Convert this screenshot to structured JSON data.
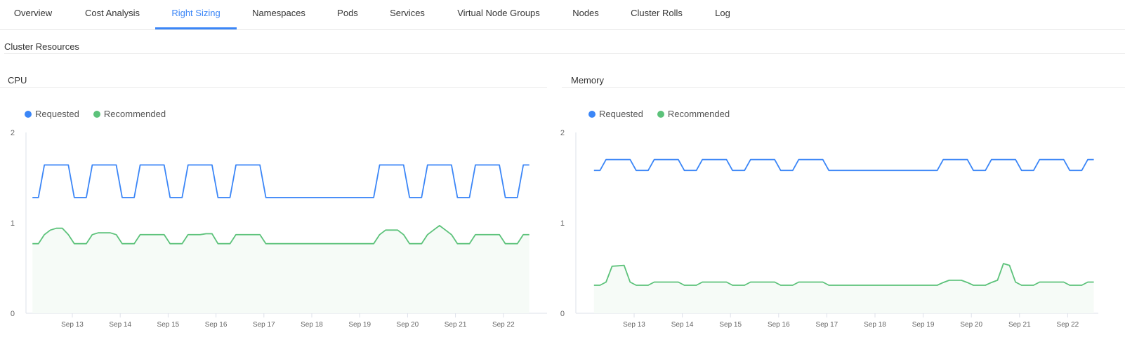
{
  "tabs": [
    {
      "label": "Overview",
      "active": false
    },
    {
      "label": "Cost Analysis",
      "active": false
    },
    {
      "label": "Right Sizing",
      "active": true
    },
    {
      "label": "Namespaces",
      "active": false
    },
    {
      "label": "Pods",
      "active": false
    },
    {
      "label": "Services",
      "active": false
    },
    {
      "label": "Virtual Node Groups",
      "active": false
    },
    {
      "label": "Nodes",
      "active": false
    },
    {
      "label": "Cluster Rolls",
      "active": false
    },
    {
      "label": "Log",
      "active": false
    }
  ],
  "section_title": "Cluster Resources",
  "colors": {
    "accent": "#3b86f7",
    "requested": "#3b86f7",
    "recommended": "#5cc27a",
    "recommended_fill": "#f6fbf7"
  },
  "chart_data": [
    {
      "title": "CPU",
      "type": "area",
      "legend": [
        "Requested",
        "Recommended"
      ],
      "legend_position": "top-left",
      "ylim": [
        0,
        2
      ],
      "yticks": [
        "0",
        "1",
        "2"
      ],
      "xticks": [
        "Sep 13",
        "Sep 14",
        "Sep 15",
        "Sep 16",
        "Sep 17",
        "Sep 18",
        "Sep 19",
        "Sep 20",
        "Sep 21",
        "Sep 22"
      ],
      "x_start": "Sep 12 04:00",
      "x_interval_hours": 3,
      "series": [
        {
          "name": "Requested",
          "color": "#3b86f7",
          "fill": false,
          "values": [
            1.28,
            1.28,
            1.64,
            1.64,
            1.64,
            1.64,
            1.64,
            1.28,
            1.28,
            1.28,
            1.64,
            1.64,
            1.64,
            1.64,
            1.64,
            1.28,
            1.28,
            1.28,
            1.64,
            1.64,
            1.64,
            1.64,
            1.64,
            1.28,
            1.28,
            1.28,
            1.64,
            1.64,
            1.64,
            1.64,
            1.64,
            1.28,
            1.28,
            1.28,
            1.64,
            1.64,
            1.64,
            1.64,
            1.64,
            1.28,
            1.28,
            1.28,
            1.28,
            1.28,
            1.28,
            1.28,
            1.28,
            1.28,
            1.28,
            1.28,
            1.28,
            1.28,
            1.28,
            1.28,
            1.28,
            1.28,
            1.28,
            1.28,
            1.64,
            1.64,
            1.64,
            1.64,
            1.64,
            1.28,
            1.28,
            1.28,
            1.64,
            1.64,
            1.64,
            1.64,
            1.64,
            1.28,
            1.28,
            1.28,
            1.64,
            1.64,
            1.64,
            1.64,
            1.64,
            1.28,
            1.28,
            1.28,
            1.64,
            1.64
          ]
        },
        {
          "name": "Recommended",
          "color": "#5cc27a",
          "fill": true,
          "values": [
            0.77,
            0.77,
            0.87,
            0.92,
            0.94,
            0.94,
            0.87,
            0.77,
            0.77,
            0.77,
            0.87,
            0.89,
            0.89,
            0.89,
            0.87,
            0.77,
            0.77,
            0.77,
            0.87,
            0.87,
            0.87,
            0.87,
            0.87,
            0.77,
            0.77,
            0.77,
            0.87,
            0.87,
            0.87,
            0.88,
            0.88,
            0.77,
            0.77,
            0.77,
            0.87,
            0.87,
            0.87,
            0.87,
            0.87,
            0.77,
            0.77,
            0.77,
            0.77,
            0.77,
            0.77,
            0.77,
            0.77,
            0.77,
            0.77,
            0.77,
            0.77,
            0.77,
            0.77,
            0.77,
            0.77,
            0.77,
            0.77,
            0.77,
            0.87,
            0.92,
            0.92,
            0.92,
            0.87,
            0.77,
            0.77,
            0.77,
            0.87,
            0.92,
            0.97,
            0.92,
            0.87,
            0.77,
            0.77,
            0.77,
            0.87,
            0.87,
            0.87,
            0.87,
            0.87,
            0.77,
            0.77,
            0.77,
            0.87,
            0.87
          ]
        }
      ]
    },
    {
      "title": "Memory",
      "type": "area",
      "legend": [
        "Requested",
        "Recommended"
      ],
      "legend_position": "top-left",
      "ylim": [
        0,
        2
      ],
      "yticks": [
        "0",
        "1",
        "2"
      ],
      "xticks": [
        "Sep 13",
        "Sep 14",
        "Sep 15",
        "Sep 16",
        "Sep 17",
        "Sep 18",
        "Sep 19",
        "Sep 20",
        "Sep 21",
        "Sep 22"
      ],
      "x_start": "Sep 12 04:00",
      "x_interval_hours": 3,
      "series": [
        {
          "name": "Requested",
          "color": "#3b86f7",
          "fill": false,
          "values": [
            1.58,
            1.58,
            1.7,
            1.7,
            1.7,
            1.7,
            1.7,
            1.58,
            1.58,
            1.58,
            1.7,
            1.7,
            1.7,
            1.7,
            1.7,
            1.58,
            1.58,
            1.58,
            1.7,
            1.7,
            1.7,
            1.7,
            1.7,
            1.58,
            1.58,
            1.58,
            1.7,
            1.7,
            1.7,
            1.7,
            1.7,
            1.58,
            1.58,
            1.58,
            1.7,
            1.7,
            1.7,
            1.7,
            1.7,
            1.58,
            1.58,
            1.58,
            1.58,
            1.58,
            1.58,
            1.58,
            1.58,
            1.58,
            1.58,
            1.58,
            1.58,
            1.58,
            1.58,
            1.58,
            1.58,
            1.58,
            1.58,
            1.58,
            1.7,
            1.7,
            1.7,
            1.7,
            1.7,
            1.58,
            1.58,
            1.58,
            1.7,
            1.7,
            1.7,
            1.7,
            1.7,
            1.58,
            1.58,
            1.58,
            1.7,
            1.7,
            1.7,
            1.7,
            1.7,
            1.58,
            1.58,
            1.58,
            1.7,
            1.7
          ]
        },
        {
          "name": "Recommended",
          "color": "#5cc27a",
          "fill": true,
          "values": [
            0.31,
            0.31,
            0.345,
            0.52,
            0.525,
            0.53,
            0.345,
            0.31,
            0.31,
            0.31,
            0.345,
            0.345,
            0.345,
            0.345,
            0.345,
            0.31,
            0.31,
            0.31,
            0.345,
            0.345,
            0.345,
            0.345,
            0.345,
            0.31,
            0.31,
            0.31,
            0.345,
            0.345,
            0.345,
            0.345,
            0.345,
            0.31,
            0.31,
            0.31,
            0.345,
            0.345,
            0.345,
            0.345,
            0.345,
            0.31,
            0.31,
            0.31,
            0.31,
            0.31,
            0.31,
            0.31,
            0.31,
            0.31,
            0.31,
            0.31,
            0.31,
            0.31,
            0.31,
            0.31,
            0.31,
            0.31,
            0.31,
            0.31,
            0.34,
            0.365,
            0.365,
            0.365,
            0.34,
            0.31,
            0.31,
            0.31,
            0.34,
            0.365,
            0.55,
            0.53,
            0.345,
            0.31,
            0.31,
            0.31,
            0.345,
            0.345,
            0.345,
            0.345,
            0.345,
            0.31,
            0.31,
            0.31,
            0.345,
            0.345
          ]
        }
      ]
    }
  ]
}
